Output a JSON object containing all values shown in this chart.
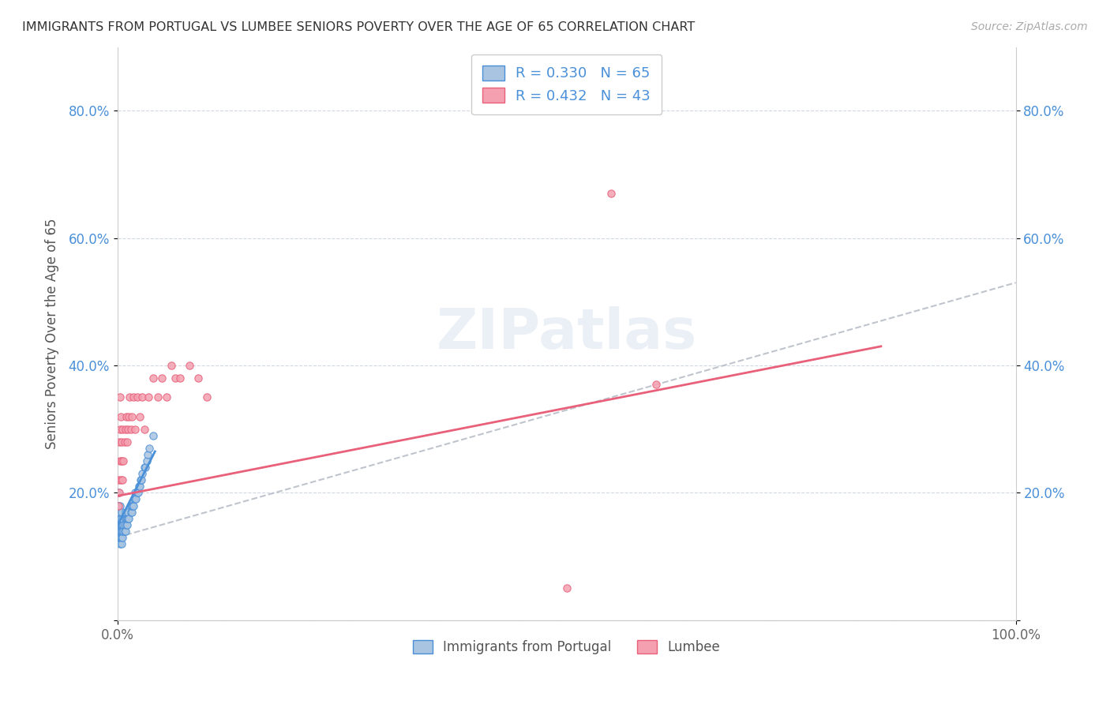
{
  "title": "IMMIGRANTS FROM PORTUGAL VS LUMBEE SENIORS POVERTY OVER THE AGE OF 65 CORRELATION CHART",
  "source": "Source: ZipAtlas.com",
  "ylabel": "Seniors Poverty Over the Age of 65",
  "xlim": [
    0,
    1
  ],
  "ylim": [
    0,
    0.9
  ],
  "yticks": [
    0.0,
    0.2,
    0.4,
    0.6,
    0.8
  ],
  "ytick_labels": [
    "",
    "20.0%",
    "40.0%",
    "60.0%",
    "80.0%"
  ],
  "legend1_label": "R = 0.330   N = 65",
  "legend2_label": "R = 0.432   N = 43",
  "portugal_color": "#a8c4e0",
  "lumbee_color": "#f4a0b0",
  "portugal_line_color": "#4a90d9",
  "lumbee_line_color": "#e8607a",
  "background_color": "#ffffff",
  "portugal_scatter_x": [
    0.001,
    0.001,
    0.001,
    0.001,
    0.002,
    0.002,
    0.002,
    0.002,
    0.002,
    0.003,
    0.003,
    0.003,
    0.003,
    0.003,
    0.003,
    0.004,
    0.004,
    0.004,
    0.004,
    0.005,
    0.005,
    0.005,
    0.005,
    0.005,
    0.006,
    0.006,
    0.006,
    0.006,
    0.007,
    0.007,
    0.008,
    0.008,
    0.009,
    0.009,
    0.009,
    0.01,
    0.01,
    0.011,
    0.011,
    0.012,
    0.012,
    0.013,
    0.015,
    0.015,
    0.016,
    0.016,
    0.017,
    0.018,
    0.019,
    0.02,
    0.02,
    0.021,
    0.022,
    0.023,
    0.024,
    0.025,
    0.026,
    0.027,
    0.028,
    0.03,
    0.031,
    0.033,
    0.034,
    0.036,
    0.04
  ],
  "portugal_scatter_y": [
    0.14,
    0.16,
    0.18,
    0.2,
    0.13,
    0.14,
    0.15,
    0.16,
    0.17,
    0.12,
    0.13,
    0.14,
    0.15,
    0.16,
    0.18,
    0.13,
    0.14,
    0.15,
    0.16,
    0.12,
    0.13,
    0.14,
    0.15,
    0.17,
    0.13,
    0.14,
    0.15,
    0.16,
    0.14,
    0.15,
    0.14,
    0.15,
    0.14,
    0.16,
    0.17,
    0.15,
    0.16,
    0.15,
    0.16,
    0.16,
    0.17,
    0.16,
    0.17,
    0.18,
    0.17,
    0.18,
    0.18,
    0.18,
    0.19,
    0.19,
    0.2,
    0.19,
    0.2,
    0.2,
    0.21,
    0.21,
    0.22,
    0.22,
    0.23,
    0.24,
    0.24,
    0.25,
    0.26,
    0.27,
    0.29
  ],
  "lumbee_scatter_x": [
    0.001,
    0.001,
    0.002,
    0.002,
    0.003,
    0.003,
    0.003,
    0.004,
    0.004,
    0.005,
    0.005,
    0.006,
    0.006,
    0.007,
    0.008,
    0.009,
    0.01,
    0.011,
    0.012,
    0.013,
    0.014,
    0.015,
    0.016,
    0.018,
    0.02,
    0.022,
    0.025,
    0.028,
    0.03,
    0.035,
    0.04,
    0.045,
    0.05,
    0.055,
    0.06,
    0.065,
    0.07,
    0.08,
    0.09,
    0.1,
    0.55,
    0.6,
    0.5
  ],
  "lumbee_scatter_y": [
    0.18,
    0.22,
    0.2,
    0.28,
    0.25,
    0.3,
    0.35,
    0.22,
    0.32,
    0.25,
    0.28,
    0.22,
    0.3,
    0.25,
    0.28,
    0.3,
    0.32,
    0.28,
    0.3,
    0.32,
    0.35,
    0.3,
    0.32,
    0.35,
    0.3,
    0.35,
    0.32,
    0.35,
    0.3,
    0.35,
    0.38,
    0.35,
    0.38,
    0.35,
    0.4,
    0.38,
    0.38,
    0.4,
    0.38,
    0.35,
    0.67,
    0.37,
    0.05
  ],
  "portugal_trend_x": [
    0.0,
    0.042
  ],
  "portugal_trend_y": [
    0.148,
    0.265
  ],
  "lumbee_trend_x": [
    0.0,
    0.85
  ],
  "lumbee_trend_y": [
    0.195,
    0.43
  ],
  "dashed_trend_x": [
    0.0,
    1.0
  ],
  "dashed_trend_y": [
    0.13,
    0.53
  ]
}
